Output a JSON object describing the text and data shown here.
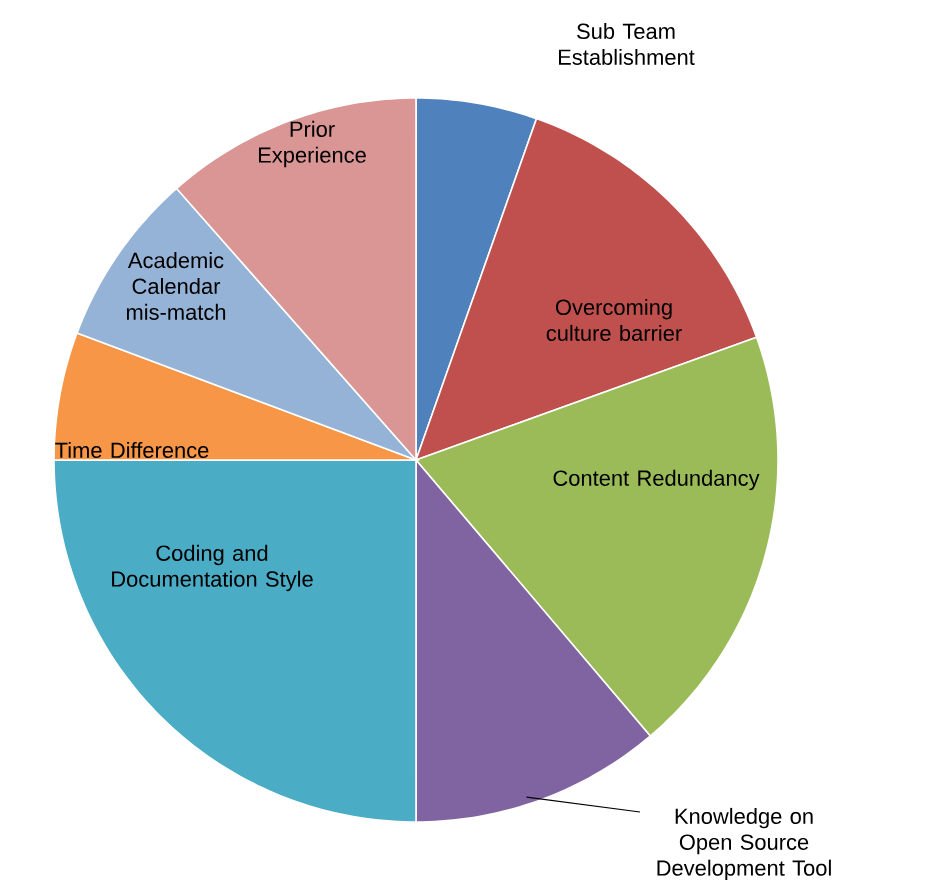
{
  "chart_data": {
    "type": "pie",
    "categories": [
      "Sub Team Establishment",
      "Overcoming culture barrier",
      "Content Redundancy",
      "Knowledge on Open Source Development Tool",
      "Coding and Documentation Style",
      "Time Difference",
      "Academic Calendar mis-match",
      "Prior Experience"
    ],
    "values": [
      5.4,
      14.1,
      19.3,
      11.2,
      25.0,
      5.7,
      7.8,
      11.5
    ],
    "colors": [
      "#4f81bd",
      "#c0504d",
      "#9bbb59",
      "#8064a2",
      "#4bacc6",
      "#f79646",
      "#95b3d7",
      "#d99694"
    ]
  }
}
